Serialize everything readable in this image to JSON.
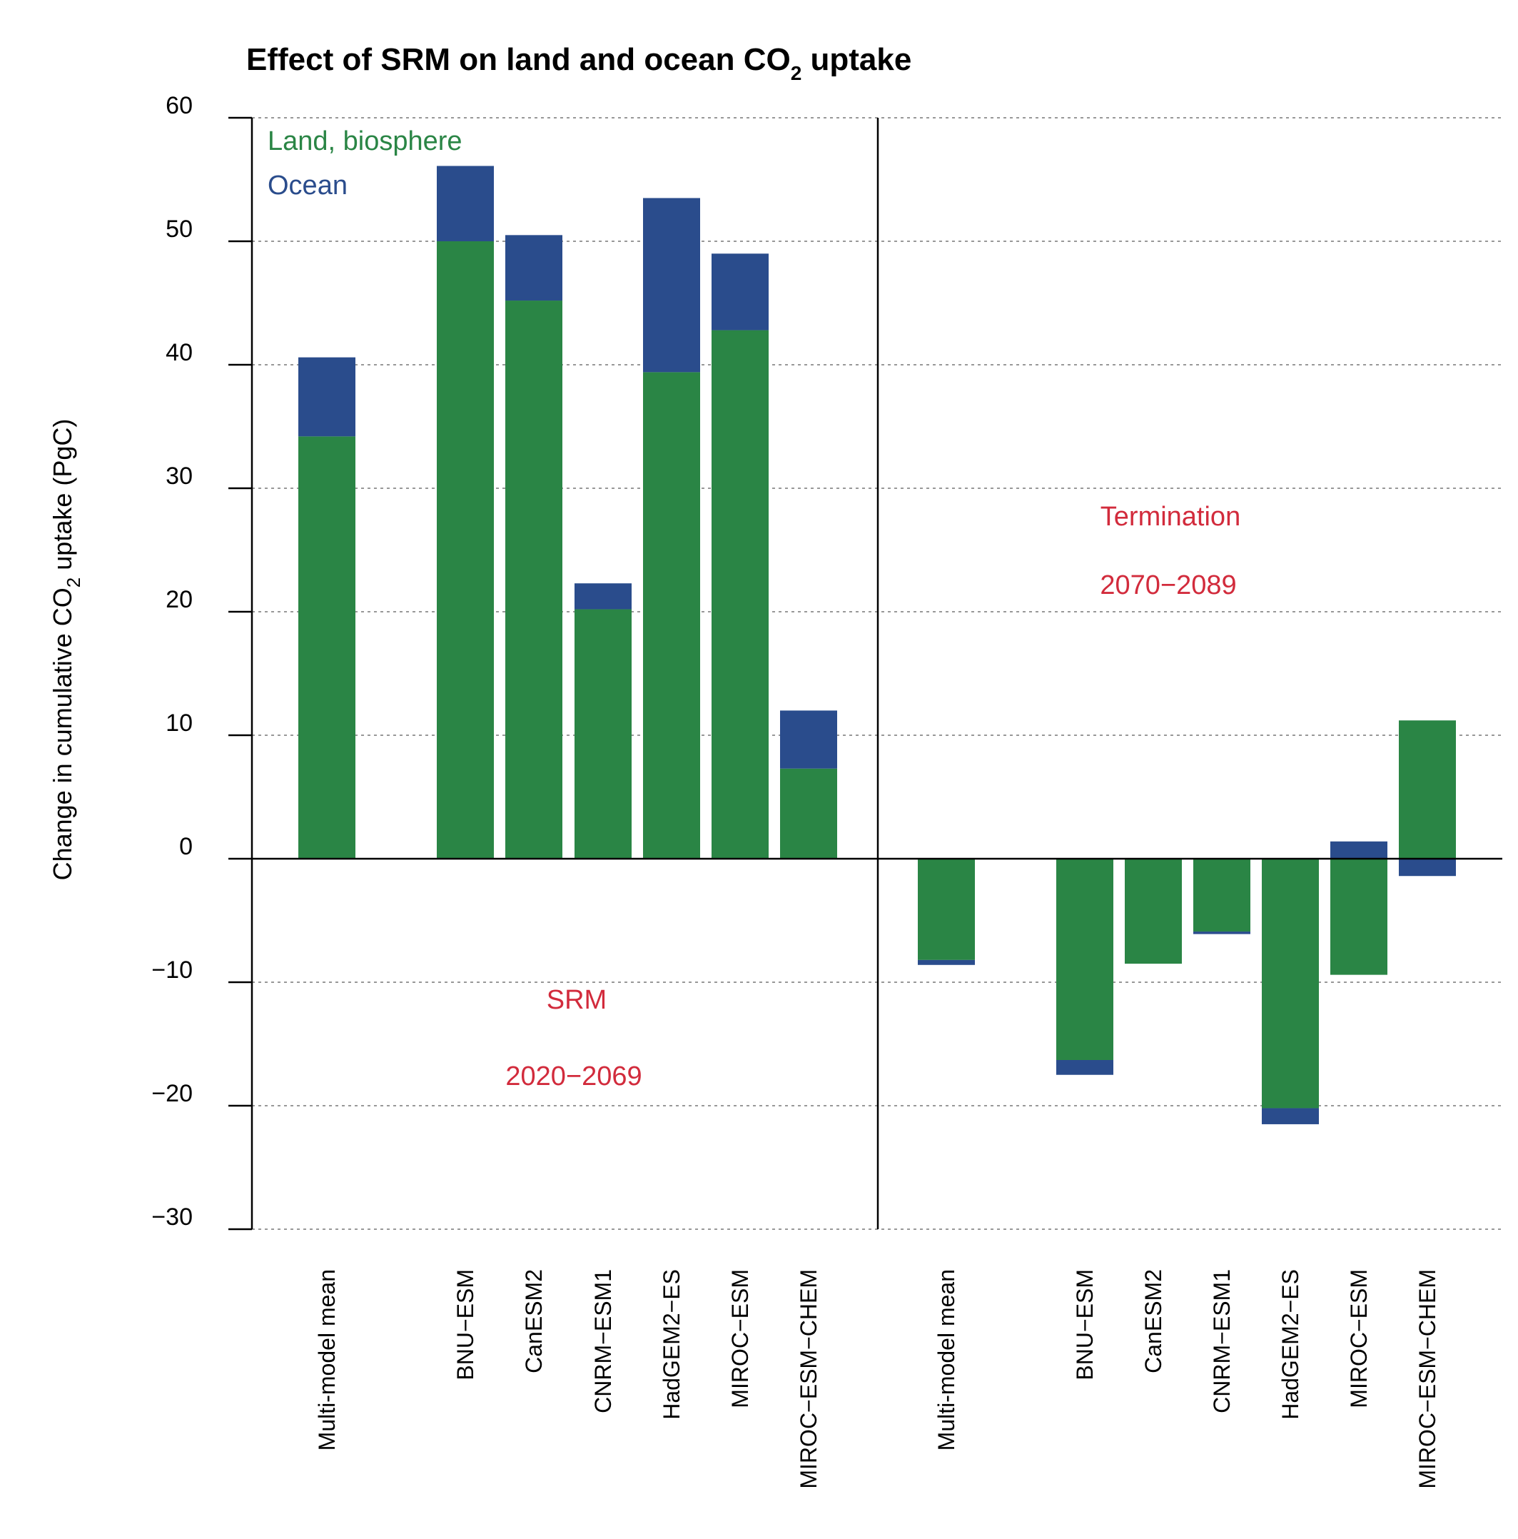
{
  "chart_data": {
    "type": "bar",
    "stacked": true,
    "title_main": "Effect of SRM on land and ocean CO",
    "title_sub": "2",
    "title_tail": " uptake",
    "ylabel_main": "Change in cumulative CO",
    "ylabel_sub": "2",
    "ylabel_tail": " uptake (PgC)",
    "ylim": [
      -30,
      60
    ],
    "yticks": [
      60,
      50,
      40,
      30,
      20,
      10,
      0,
      -10,
      -20,
      -30
    ],
    "ytick_labels": [
      "60",
      "50",
      "40",
      "30",
      "20",
      "10",
      "0",
      "−10",
      "−20",
      "−30"
    ],
    "grid": "horizontal dotted",
    "legend": {
      "placement": "top-left",
      "items": [
        {
          "label": "Land, biosphere",
          "color": "#2a8545"
        },
        {
          "label": "Ocean",
          "color": "#2a4c8c"
        }
      ]
    },
    "colors": {
      "land": "#2a8545",
      "ocean": "#2a4c8c",
      "annotation": "#d22b3c"
    },
    "panels": [
      {
        "name": "SRM",
        "period": "2020−2069",
        "categories": [
          "Multi-model mean",
          "BNU−ESM",
          "CanESM2",
          "CNRM−ESM1",
          "HadGEM2−ES",
          "MIROC−ESM",
          "MIROC−ESM−CHEM"
        ],
        "series": [
          {
            "name": "Land, biosphere",
            "values": [
              34.2,
              50.0,
              45.2,
              20.2,
              39.4,
              42.8,
              7.3
            ]
          },
          {
            "name": "Ocean",
            "values": [
              6.4,
              6.1,
              5.3,
              2.1,
              14.1,
              6.2,
              4.7
            ]
          }
        ]
      },
      {
        "name": "Termination",
        "period": "2070−2089",
        "categories": [
          "Multi-model mean",
          "BNU−ESM",
          "CanESM2",
          "CNRM−ESM1",
          "HadGEM2−ES",
          "MIROC−ESM",
          "MIROC−ESM−CHEM"
        ],
        "series": [
          {
            "name": "Land, biosphere",
            "values": [
              -8.2,
              -16.3,
              -8.5,
              -5.9,
              -20.2,
              -9.4,
              11.2
            ]
          },
          {
            "name": "Ocean",
            "values": [
              -0.4,
              -1.2,
              0,
              -0.2,
              -1.3,
              1.4,
              -1.4
            ]
          }
        ]
      }
    ]
  }
}
